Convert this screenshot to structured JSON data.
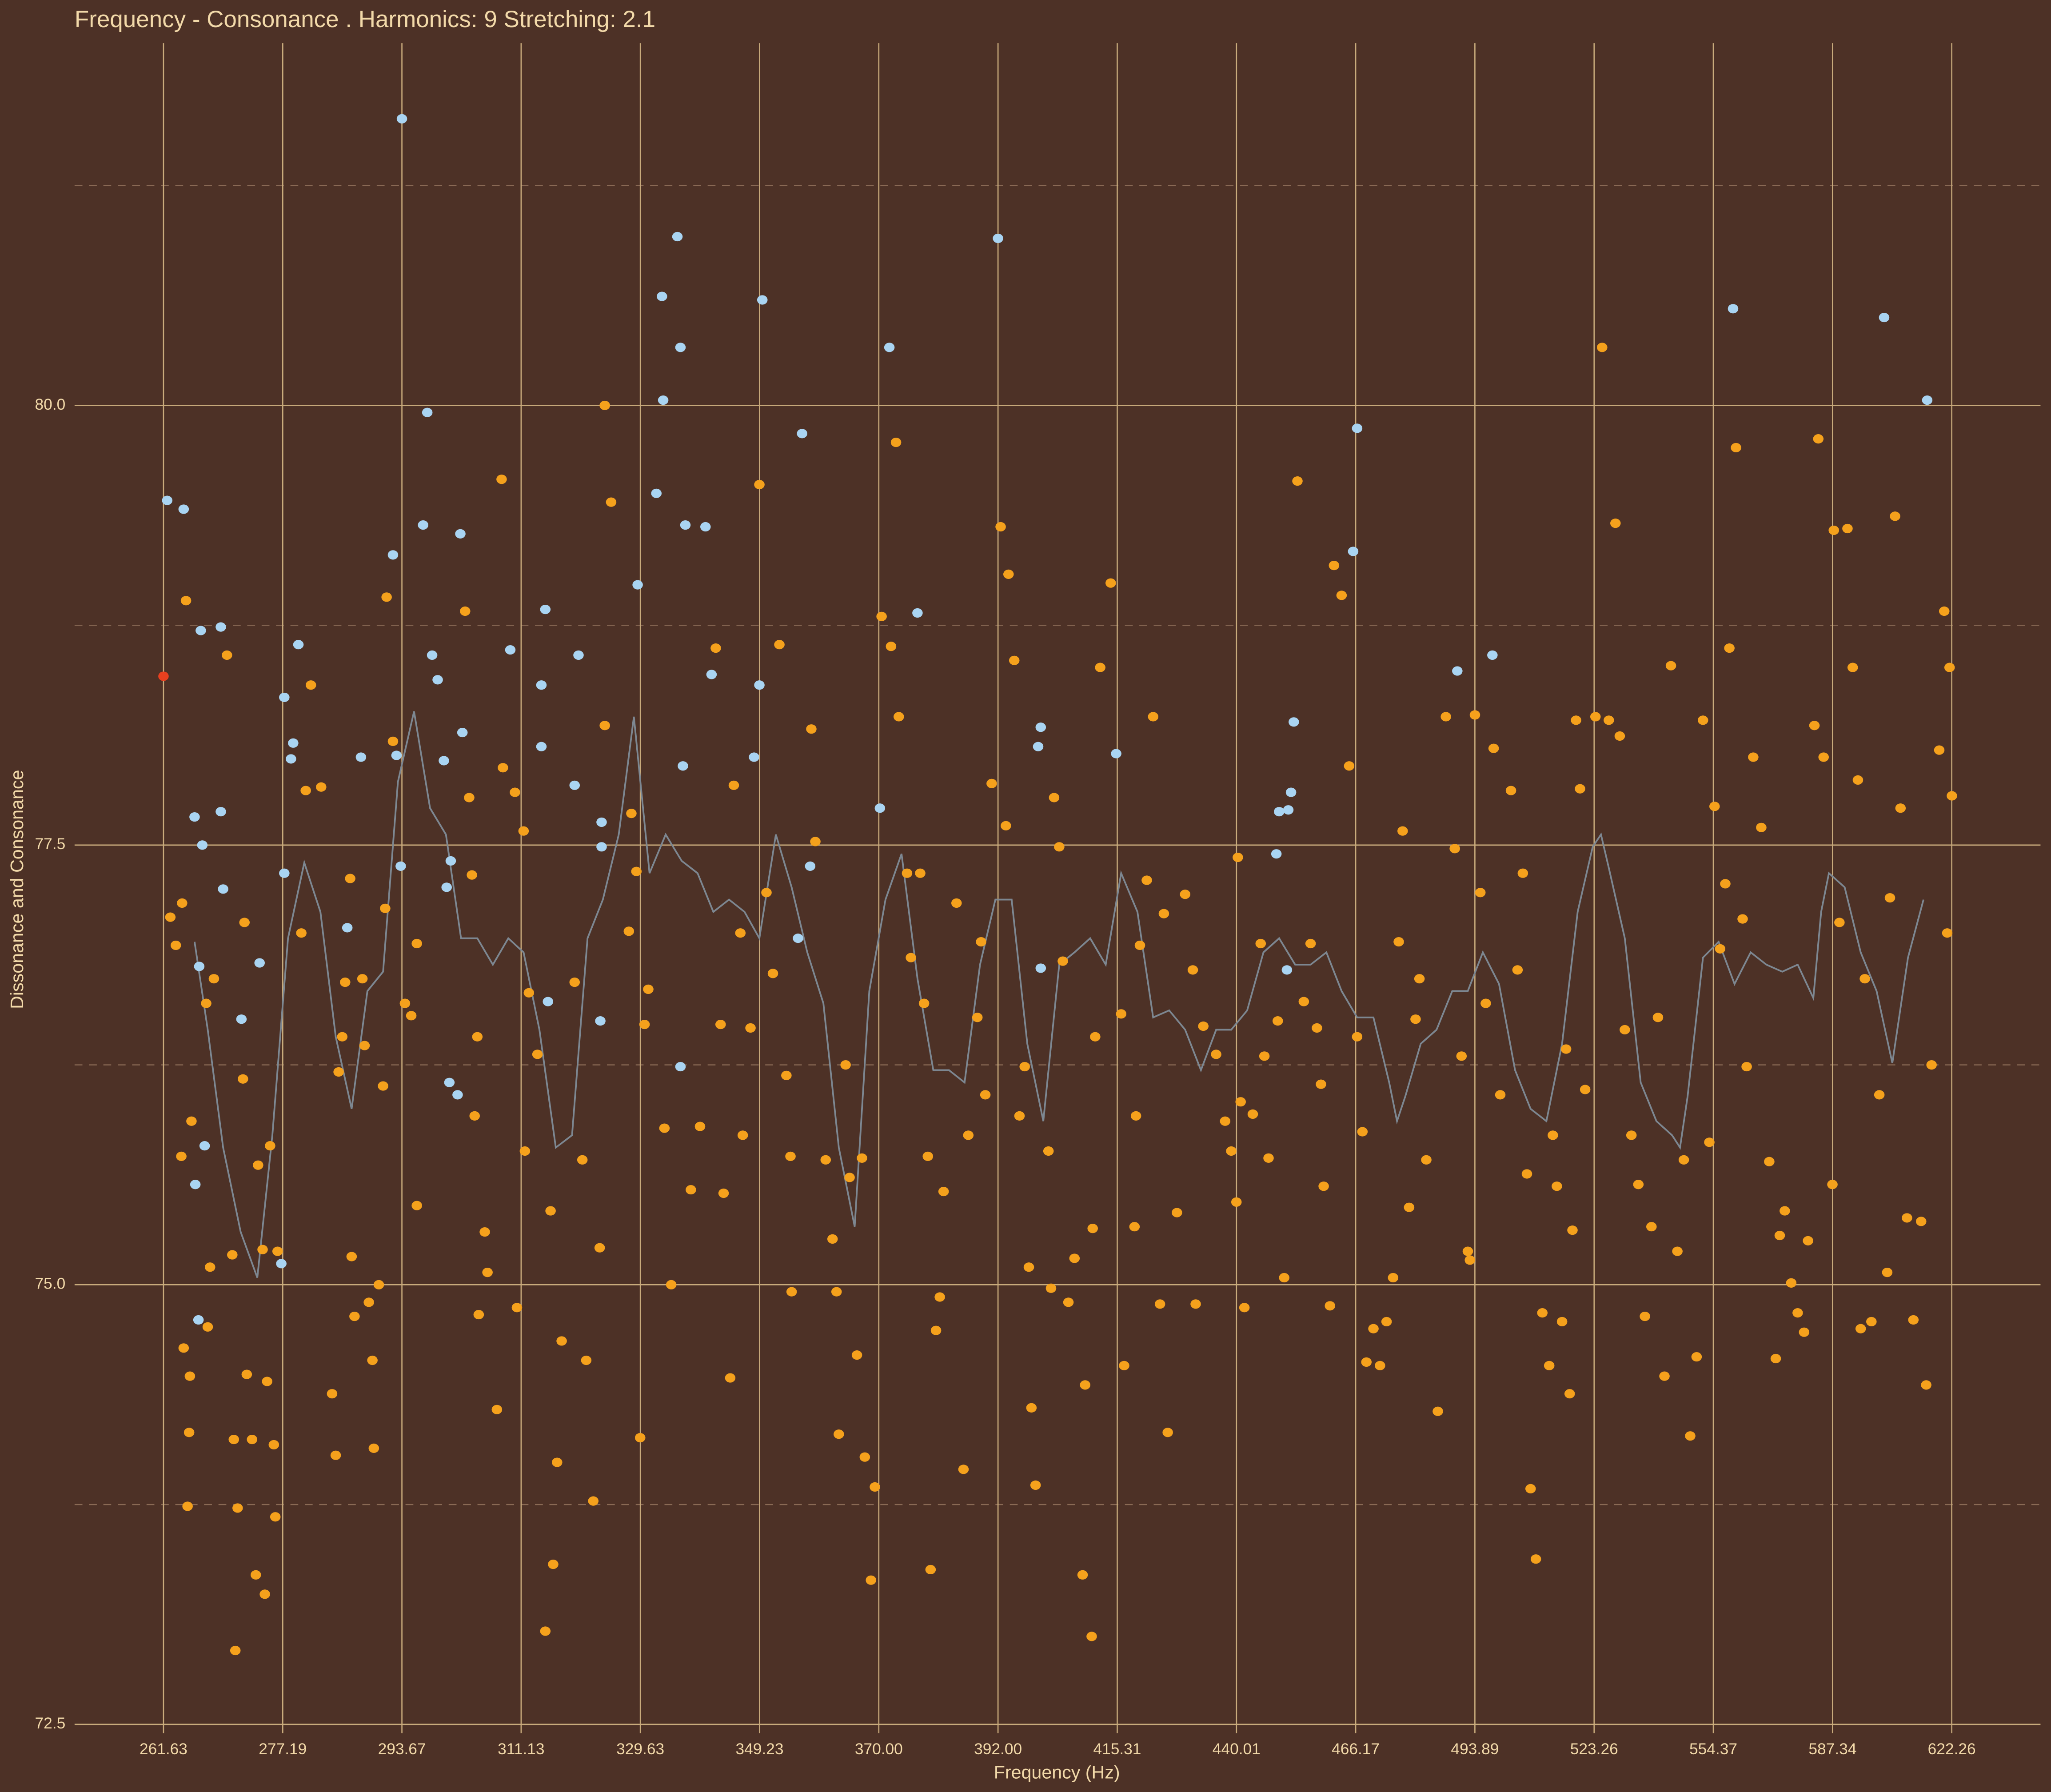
{
  "chart_data": {
    "type": "scatter",
    "title": "Frequency - Consonance . Harmonics: 9 Stretching: 2.1",
    "x_label": "Frequency (Hz)",
    "y_label": "Dissonance and Consonance",
    "xscale": "log",
    "grid": true,
    "xlim": [
      250.6,
      649.6
    ],
    "ylim": [
      72.45,
      82.06
    ],
    "xticks": [
      261.63,
      277.19,
      293.67,
      311.13,
      329.63,
      349.23,
      {
        "value": 370,
        "label": "370.00"
      },
      {
        "value": 392,
        "label": "392.00"
      },
      415.31,
      440.01,
      466.17,
      493.89,
      523.26,
      554.37,
      587.34,
      622.26
    ],
    "yticks": [
      72.5,
      {
        "value": 75,
        "label": "75.0"
      },
      77.5,
      {
        "value": 80,
        "label": "80.0"
      }
    ],
    "yminor_ticks": [
      73.75,
      76.25,
      78.75,
      81.25
    ],
    "series": [
      {
        "type": "line",
        "color": "#7d8791",
        "x": [
          265.6,
          267.3,
          269.3,
          271.6,
          273.8,
          275.8,
          277.9,
          280.1,
          282.3,
          284.4,
          286.6,
          288.8,
          291.0,
          293.1,
          295.4,
          297.7,
          300.0,
          302.2,
          304.6,
          306.9,
          309.2,
          311.5,
          313.9,
          316.4,
          318.9,
          321.3,
          323.7,
          326.2,
          328.6,
          331.1,
          333.7,
          336.3,
          338.9,
          341.5,
          344.1,
          346.7,
          349.2,
          352.0,
          354.7,
          357.4,
          360.2,
          362.9,
          365.7,
          368.3,
          371.2,
          374.1,
          377.0,
          379.9,
          382.8,
          385.7,
          388.6,
          391.5,
          394.6,
          397.6,
          400.7,
          403.8,
          406.8,
          409.9,
          413.0,
          416.1,
          419.4,
          422.6,
          425.9,
          429.2,
          432.5,
          435.7,
          438.9,
          442.3,
          445.8,
          449.2,
          452.7,
          456.1,
          459.6,
          463.0,
          466.5,
          470.2,
          473.8,
          475.6,
          477.5,
          481.1,
          484.8,
          488.5,
          492.2,
          495.8,
          499.7,
          503.6,
          507.4,
          511.3,
          515.2,
          519.1,
          522.9,
          525.0,
          527.0,
          531.1,
          535.2,
          539.3,
          543.4,
          545.5,
          547.5,
          551.6,
          555.8,
          560.1,
          564.5,
          568.8,
          573.2,
          577.5,
          581.9,
          584.1,
          586.3,
          590.8,
          595.4,
          600.0,
          604.6,
          609.2,
          613.8
        ],
        "values": [
          76.95,
          76.45,
          75.78,
          75.3,
          75.04,
          75.85,
          76.97,
          77.4,
          77.12,
          76.41,
          76.0,
          76.67,
          76.78,
          77.86,
          78.26,
          77.71,
          77.56,
          76.97,
          76.97,
          76.82,
          76.97,
          76.89,
          76.45,
          75.78,
          75.85,
          76.97,
          77.19,
          77.56,
          78.23,
          77.34,
          77.56,
          77.41,
          77.34,
          77.12,
          77.19,
          77.12,
          76.97,
          77.56,
          77.26,
          76.89,
          76.6,
          75.78,
          75.33,
          76.67,
          77.19,
          77.45,
          76.74,
          76.22,
          76.22,
          76.15,
          76.82,
          77.19,
          77.19,
          76.37,
          75.93,
          76.82,
          76.89,
          76.97,
          76.82,
          77.34,
          77.12,
          76.52,
          76.56,
          76.45,
          76.22,
          76.45,
          76.45,
          76.56,
          76.89,
          76.97,
          76.82,
          76.82,
          76.89,
          76.67,
          76.52,
          76.52,
          76.15,
          75.93,
          76.07,
          76.37,
          76.45,
          76.67,
          76.67,
          76.89,
          76.71,
          76.22,
          76.0,
          75.93,
          76.37,
          77.12,
          77.49,
          77.56,
          77.37,
          76.97,
          76.15,
          75.93,
          75.85,
          75.78,
          76.07,
          76.86,
          76.95,
          76.71,
          76.89,
          76.82,
          76.78,
          76.82,
          76.63,
          77.12,
          77.34,
          77.26,
          76.89,
          76.67,
          76.26,
          76.86,
          77.19
        ]
      },
      {
        "type": "scatter",
        "color": "#f5a11c",
        "x": [
          262.5,
          263.2,
          264.5,
          264.0,
          263.9,
          265.2,
          264.2,
          265.0,
          264.9,
          264.7,
          267.1,
          267.6,
          267.3,
          268.1,
          269.8,
          270.5,
          270.7,
          271.2,
          270.9,
          271.9,
          272.1,
          272.4,
          273.1,
          273.6,
          273.9,
          274.5,
          274.8,
          275.1,
          275.5,
          276.0,
          276.2,
          276.5,
          279.7,
          280.3,
          281.0,
          282.4,
          283.9,
          284.4,
          284.8,
          285.3,
          285.7,
          286.4,
          286.6,
          287.0,
          288.1,
          288.4,
          289.0,
          289.5,
          289.7,
          290.4,
          291.0,
          291.3,
          291.5,
          292.4,
          294.1,
          295.0,
          295.8,
          295.8,
          302.8,
          303.4,
          303.8,
          304.2,
          304.6,
          304.8,
          305.7,
          306.1,
          307.5,
          308.2,
          308.4,
          310.2,
          310.5,
          311.5,
          311.7,
          312.3,
          313.6,
          314.8,
          315.6,
          316.0,
          316.6,
          317.3,
          319.3,
          320.5,
          321.1,
          322.2,
          323.2,
          324.0,
          324.0,
          325.0,
          327.8,
          328.2,
          329.0,
          329.6,
          330.3,
          330.9,
          333.5,
          334.6,
          337.8,
          339.3,
          341.9,
          342.7,
          343.2,
          344.3,
          344.9,
          346.0,
          346.4,
          347.7,
          349.2,
          350.4,
          351.5,
          352.6,
          353.8,
          354.7,
          354.5,
          358.1,
          358.8,
          360.6,
          361.8,
          362.5,
          362.9,
          364.1,
          364.8,
          366.1,
          367.0,
          367.5,
          368.6,
          369.3,
          370.5,
          372.2,
          373.1,
          373.6,
          375.1,
          375.8,
          377.5,
          378.2,
          378.9,
          379.4,
          380.4,
          381.1,
          381.8,
          384.2,
          385.5,
          386.4,
          388.1,
          388.8,
          389.6,
          390.8,
          392.5,
          393.5,
          394.0,
          395.1,
          396.1,
          397.1,
          397.9,
          398.4,
          399.2,
          401.7,
          402.2,
          402.8,
          403.8,
          404.5,
          405.6,
          406.8,
          408.4,
          408.9,
          410.2,
          410.4,
          410.9,
          411.9,
          414.0,
          416.1,
          416.7,
          418.8,
          419.1,
          419.9,
          421.3,
          422.6,
          424.0,
          424.8,
          425.6,
          427.5,
          429.2,
          430.8,
          431.4,
          433.0,
          435.7,
          437.6,
          438.9,
          440.3,
          440.0,
          440.9,
          441.7,
          443.5,
          445.2,
          446.0,
          446.9,
          448.9,
          450.3,
          453.2,
          454.6,
          456.1,
          457.5,
          458.4,
          459.0,
          460.4,
          461.3,
          463.0,
          464.7,
          466.5,
          467.7,
          468.6,
          470.2,
          471.7,
          473.2,
          474.7,
          476.0,
          476.9,
          478.4,
          479.9,
          480.8,
          482.4,
          485.1,
          487.0,
          489.1,
          490.7,
          492.2,
          492.7,
          493.9,
          495.2,
          496.5,
          498.4,
          500.0,
          502.6,
          504.2,
          505.5,
          506.5,
          507.4,
          508.7,
          510.3,
          512.0,
          512.9,
          513.9,
          515.2,
          516.2,
          517.1,
          517.8,
          518.7,
          519.7,
          521.0,
          523.6,
          525.3,
          527.0,
          528.7,
          529.8,
          531.1,
          532.8,
          534.6,
          536.3,
          538.0,
          539.7,
          541.4,
          543.1,
          544.8,
          546.5,
          548.2,
          549.9,
          551.6,
          553.3,
          554.7,
          556.2,
          557.6,
          558.7,
          560.5,
          562.3,
          563.4,
          565.2,
          567.4,
          569.6,
          571.4,
          572.5,
          573.9,
          575.7,
          577.5,
          579.3,
          580.4,
          582.2,
          583.3,
          584.8,
          587.3,
          587.7,
          589.3,
          591.6,
          593.1,
          594.6,
          595.4,
          596.6,
          598.5,
          600.8,
          603.1,
          603.9,
          605.4,
          607.0,
          608.9,
          610.8,
          613.1,
          614.6,
          616.2,
          618.5,
          620.0,
          621.6,
          620.9,
          622.3
        ],
        "values": [
          77.09,
          76.93,
          78.89,
          77.17,
          75.73,
          75.93,
          74.64,
          74.48,
          74.16,
          73.74,
          76.6,
          75.1,
          74.76,
          76.74,
          78.58,
          75.17,
          74.12,
          73.73,
          72.92,
          76.17,
          77.06,
          74.49,
          74.12,
          73.35,
          75.68,
          75.2,
          73.24,
          74.45,
          75.79,
          74.09,
          73.68,
          75.19,
          77.0,
          77.81,
          78.41,
          77.83,
          74.38,
          74.03,
          76.21,
          76.41,
          76.72,
          77.31,
          75.16,
          74.82,
          76.74,
          76.36,
          74.9,
          74.57,
          74.07,
          75.0,
          76.13,
          77.14,
          78.91,
          78.09,
          76.6,
          76.53,
          75.45,
          76.94,
          78.83,
          77.77,
          77.33,
          75.96,
          76.41,
          74.83,
          75.3,
          75.07,
          74.29,
          79.58,
          77.94,
          77.8,
          74.87,
          77.58,
          75.76,
          76.66,
          76.31,
          73.03,
          75.42,
          73.41,
          73.99,
          74.68,
          76.72,
          75.71,
          74.57,
          73.77,
          75.21,
          80.0,
          78.18,
          79.45,
          77.01,
          77.68,
          77.35,
          74.13,
          76.48,
          76.68,
          75.89,
          75.0,
          75.54,
          75.9,
          78.62,
          76.48,
          75.52,
          74.47,
          77.84,
          77.0,
          75.85,
          76.46,
          79.55,
          77.23,
          76.77,
          78.64,
          76.19,
          74.96,
          75.73,
          78.16,
          77.52,
          75.71,
          75.26,
          74.96,
          74.15,
          76.25,
          75.61,
          74.6,
          75.72,
          74.02,
          73.32,
          73.85,
          78.8,
          78.63,
          79.79,
          78.23,
          77.34,
          76.86,
          77.34,
          76.6,
          75.73,
          73.38,
          74.74,
          74.93,
          75.53,
          77.17,
          73.95,
          75.85,
          76.52,
          76.95,
          76.08,
          77.85,
          79.31,
          77.61,
          79.04,
          78.55,
          75.96,
          76.24,
          75.1,
          74.3,
          73.86,
          75.76,
          74.98,
          77.77,
          77.49,
          76.84,
          74.9,
          75.15,
          73.35,
          74.43,
          73.0,
          75.32,
          76.41,
          78.51,
          78.99,
          76.54,
          74.54,
          75.33,
          75.96,
          76.93,
          77.3,
          78.23,
          74.89,
          77.11,
          74.16,
          75.41,
          77.22,
          76.79,
          74.89,
          76.47,
          76.31,
          75.93,
          75.76,
          77.43,
          75.47,
          76.04,
          74.87,
          75.97,
          76.94,
          76.3,
          75.72,
          76.5,
          75.04,
          79.57,
          76.61,
          76.94,
          76.46,
          76.14,
          75.56,
          74.88,
          79.09,
          78.92,
          77.95,
          76.41,
          75.87,
          74.56,
          74.75,
          74.54,
          74.79,
          75.04,
          76.95,
          77.58,
          75.44,
          76.51,
          76.74,
          75.71,
          74.28,
          78.23,
          77.48,
          76.3,
          75.19,
          75.14,
          78.24,
          77.23,
          76.6,
          78.05,
          76.08,
          77.81,
          76.79,
          77.34,
          75.63,
          73.84,
          73.44,
          74.84,
          74.54,
          75.85,
          75.56,
          74.79,
          76.34,
          74.38,
          75.31,
          78.21,
          77.82,
          76.11,
          78.23,
          80.33,
          78.21,
          79.33,
          78.12,
          76.45,
          75.85,
          75.57,
          74.82,
          75.33,
          76.52,
          74.48,
          78.52,
          75.19,
          75.71,
          74.14,
          74.59,
          78.21,
          75.81,
          77.72,
          76.91,
          77.28,
          78.62,
          79.76,
          77.08,
          76.24,
          78.0,
          77.6,
          75.7,
          74.58,
          75.28,
          75.42,
          75.01,
          74.84,
          74.73,
          75.25,
          78.18,
          79.81,
          78.0,
          75.57,
          79.29,
          77.06,
          79.3,
          78.51,
          77.87,
          74.75,
          76.74,
          74.79,
          76.08,
          75.07,
          77.2,
          79.37,
          77.71,
          75.38,
          74.8,
          75.36,
          74.43,
          76.25,
          78.04,
          78.83,
          78.51,
          77.0,
          77.78
        ]
      },
      {
        "type": "scatter",
        "color": "#a9d4f2",
        "x": [
          262.1,
          264.2,
          266.4,
          269.0,
          265.6,
          269.0,
          266.6,
          269.3,
          266.2,
          266.9,
          265.7,
          266.1,
          271.7,
          274.1,
          277.0,
          277.4,
          277.4,
          278.3,
          278.6,
          279.3,
          286.0,
          287.9,
          292.4,
          293.67,
          292.9,
          293.5,
          296.7,
          297.3,
          298.0,
          298.8,
          299.7,
          300.1,
          300.7,
          300.5,
          301.7,
          302.1,
          302.4,
          309.5,
          314.2,
          314.2,
          314.8,
          315.2,
          319.3,
          319.9,
          323.3,
          323.5,
          323.5,
          329.2,
          332.2,
          333.1,
          333.3,
          335.6,
          336.1,
          336.1,
          336.5,
          336.9,
          340.2,
          341.2,
          348.3,
          349.2,
          349.7,
          355.8,
          356.5,
          357.9,
          370.2,
          371.9,
          377.0,
          392.0,
          399.7,
          400.2,
          400.2,
          415.1,
          448.6,
          449.2,
          451.2,
          450.9,
          451.8,
          452.4,
          465.6,
          466.5,
          489.7,
          498.1,
          559.7,
          602.2,
          614.9
        ],
        "values": [
          79.46,
          79.41,
          78.72,
          78.74,
          77.66,
          77.69,
          77.5,
          77.25,
          76.81,
          75.79,
          75.57,
          74.8,
          76.51,
          76.83,
          75.12,
          77.34,
          78.34,
          77.99,
          78.08,
          78.64,
          77.03,
          78.0,
          79.15,
          81.63,
          78.01,
          77.38,
          79.32,
          79.96,
          78.58,
          78.44,
          77.98,
          77.26,
          77.41,
          76.15,
          76.08,
          79.27,
          78.14,
          78.61,
          78.41,
          78.06,
          78.84,
          76.61,
          77.84,
          78.58,
          76.5,
          77.63,
          77.49,
          78.98,
          79.5,
          80.62,
          80.03,
          80.96,
          80.33,
          76.24,
          77.95,
          79.32,
          79.31,
          78.47,
          78.0,
          78.41,
          80.6,
          76.97,
          79.84,
          77.38,
          77.71,
          80.33,
          78.82,
          80.95,
          78.06,
          78.17,
          76.8,
          78.02,
          77.45,
          77.69,
          77.7,
          76.79,
          77.8,
          78.2,
          79.17,
          79.87,
          78.49,
          78.58,
          80.55,
          80.5,
          80.03
        ]
      },
      {
        "type": "scatter",
        "color": "#e8401f",
        "x": [
          261.63
        ],
        "values": [
          78.46
        ]
      }
    ]
  }
}
